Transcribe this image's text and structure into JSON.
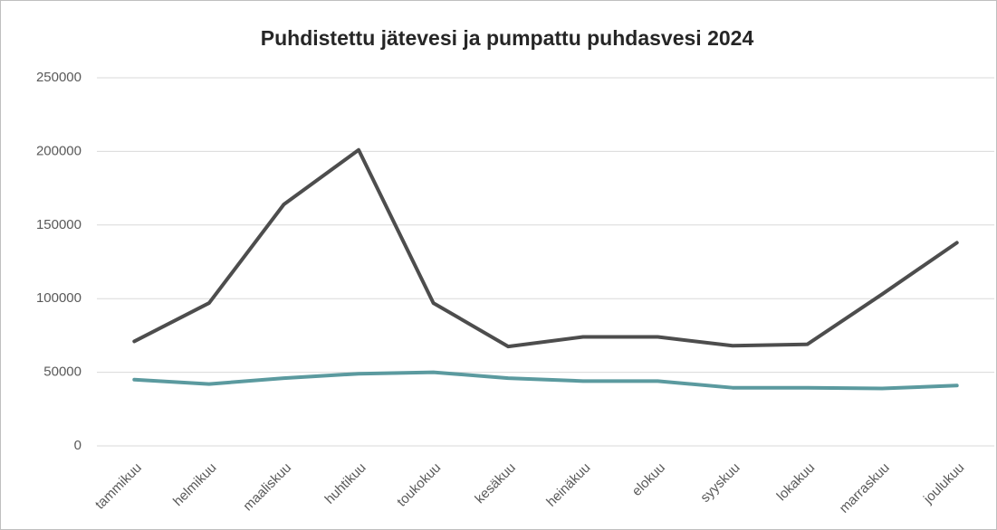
{
  "chart_data": {
    "type": "line",
    "title": "Puhdistettu jätevesi ja pumpattu puhdasvesi 2024",
    "categories": [
      "tammikuu",
      "helmikuu",
      "maaliskuu",
      "huhtikuu",
      "toukokuu",
      "kesäkuu",
      "heinäkuu",
      "elokuu",
      "syyskuu",
      "lokakuu",
      "marraskuu",
      "joulukuu"
    ],
    "series": [
      {
        "color": "#4d4d4d",
        "values": [
          71000,
          97000,
          164000,
          201000,
          97000,
          67500,
          74000,
          74000,
          68000,
          69000,
          103000,
          138000
        ]
      },
      {
        "color": "#5b9a9f",
        "values": [
          45000,
          42000,
          46000,
          49000,
          50000,
          46000,
          44000,
          44000,
          39500,
          39500,
          39000,
          41000
        ]
      }
    ],
    "ylim": [
      0,
      250000
    ],
    "yticks": [
      0,
      50000,
      100000,
      150000,
      200000,
      250000
    ],
    "grid": true
  }
}
